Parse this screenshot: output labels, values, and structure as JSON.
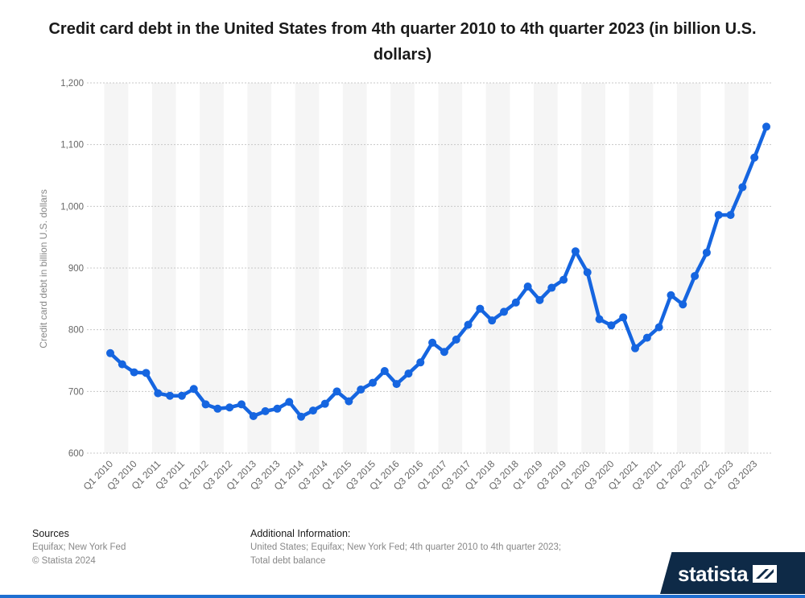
{
  "title": "Credit card debt in the United States from 4th quarter 2010 to 4th quarter 2023 (in billion U.S. dollars)",
  "footer": {
    "sources_heading": "Sources",
    "sources_text": "Equifax; New York Fed",
    "copyright": "© Statista 2024",
    "additional_heading": "Additional Information:",
    "additional_text": "United States; Equifax; New York Fed; 4th quarter 2010 to 4th quarter 2023; Total debt balance"
  },
  "logo": {
    "text": "statista"
  },
  "colors": {
    "line": "#1565e0",
    "band": "#f5f5f5",
    "grid": "#c8c8c8",
    "axis_text": "#666666",
    "logo_bg": "#0e2a47"
  },
  "chart_data": {
    "type": "line",
    "title": "Credit card debt in the United States from 4th quarter 2010 to 4th quarter 2023 (in billion U.S. dollars)",
    "xlabel": "",
    "ylabel": "Credit card debt in billion U.S. dollars",
    "ylim": [
      600,
      1200
    ],
    "yticks": [
      600,
      700,
      800,
      900,
      1000,
      1100,
      1200
    ],
    "ytick_labels": [
      "600",
      "700",
      "800",
      "900",
      "1,000",
      "1,100",
      "1,200"
    ],
    "grid": true,
    "x": [
      "Q1 2010",
      "Q2 2010",
      "Q3 2010",
      "Q4 2010",
      "Q1 2011",
      "Q2 2011",
      "Q3 2011",
      "Q4 2011",
      "Q1 2012",
      "Q2 2012",
      "Q3 2012",
      "Q4 2012",
      "Q1 2013",
      "Q2 2013",
      "Q3 2013",
      "Q4 2013",
      "Q1 2014",
      "Q2 2014",
      "Q3 2014",
      "Q4 2014",
      "Q1 2015",
      "Q2 2015",
      "Q3 2015",
      "Q4 2015",
      "Q1 2016",
      "Q2 2016",
      "Q3 2016",
      "Q4 2016",
      "Q1 2017",
      "Q2 2017",
      "Q3 2017",
      "Q4 2017",
      "Q1 2018",
      "Q2 2018",
      "Q3 2018",
      "Q4 2018",
      "Q1 2019",
      "Q2 2019",
      "Q3 2019",
      "Q4 2019",
      "Q1 2020",
      "Q2 2020",
      "Q3 2020",
      "Q4 2020",
      "Q1 2021",
      "Q2 2021",
      "Q3 2021",
      "Q4 2021",
      "Q1 2022",
      "Q2 2022",
      "Q3 2022",
      "Q4 2022",
      "Q1 2023",
      "Q2 2023",
      "Q3 2023",
      "Q4 2023"
    ],
    "x_tick_labels": [
      "Q1 2010",
      "Q3 2010",
      "Q1 2011",
      "Q3 2011",
      "Q1 2012",
      "Q3 2012",
      "Q1 2013",
      "Q3 2013",
      "Q1 2014",
      "Q3 2014",
      "Q1 2015",
      "Q3 2015",
      "Q1 2016",
      "Q3 2016",
      "Q1 2017",
      "Q3 2017",
      "Q1 2018",
      "Q3 2018",
      "Q1 2019",
      "Q3 2019",
      "Q1 2020",
      "Q3 2020",
      "Q1 2021",
      "Q3 2021",
      "Q1 2022",
      "Q3 2022",
      "Q1 2023",
      "Q3 2023"
    ],
    "series": [
      {
        "name": "",
        "values": [
          762,
          744,
          731,
          730,
          697,
          693,
          693,
          704,
          679,
          672,
          674,
          679,
          660,
          668,
          672,
          683,
          659,
          669,
          680,
          700,
          684,
          703,
          714,
          733,
          712,
          729,
          747,
          779,
          764,
          784,
          808,
          834,
          815,
          829,
          844,
          870,
          848,
          868,
          881,
          927,
          893,
          817,
          807,
          820,
          770,
          787,
          804,
          856,
          841,
          887,
          925,
          986,
          986,
          1031,
          1079,
          1129
        ]
      }
    ]
  }
}
